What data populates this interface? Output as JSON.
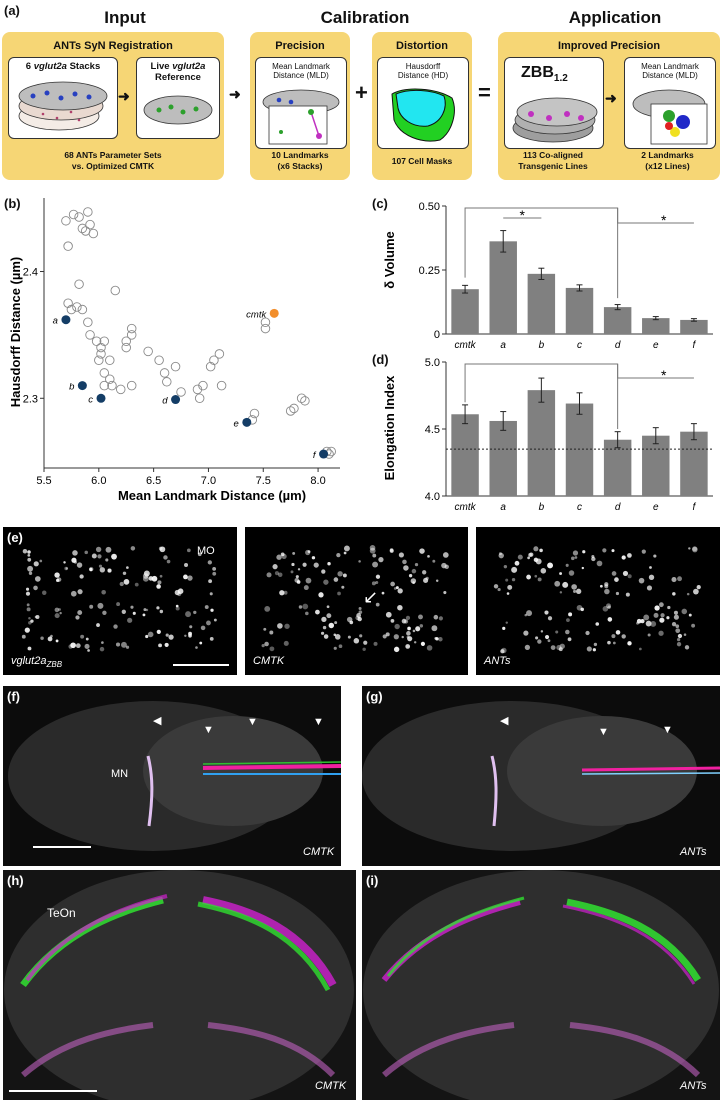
{
  "panels": {
    "a": "(a)",
    "b": "(b)",
    "c": "(c)",
    "d": "(d)",
    "e": "(e)",
    "f": "(f)",
    "g": "(g)",
    "h": "(h)",
    "i": "(i)"
  },
  "panel_a": {
    "input": {
      "heading": "Input",
      "box_title": "ANTs SyN Registration",
      "stacks_label_prefix": "6 ",
      "stacks_label_gene": "vglut2a",
      "stacks_label_suffix": " Stacks",
      "live_label_1": "Live ",
      "live_label_gene": "vglut2a",
      "live_label_2": "Reference",
      "caption_1": "68 ANTs Parameter Sets",
      "caption_2": "vs. Optimized CMTK"
    },
    "calibration": {
      "heading": "Calibration",
      "precision_title": "Precision",
      "distortion_title": "Distortion",
      "mld_label_1": "Mean Landmark",
      "mld_label_2": "Distance (MLD)",
      "hd_label_1": "Hausdorff",
      "hd_label_2": "Distance (HD)",
      "cap_prec_1": "10 Landmarks",
      "cap_prec_2": "(x6 Stacks)",
      "cap_dist": "107 Cell Masks"
    },
    "application": {
      "heading": "Application",
      "box_title": "Improved Precision",
      "zbb_main": "ZBB",
      "zbb_sub": "1.2",
      "mld_label_1": "Mean Landmark",
      "mld_label_2": "Distance (MLD)",
      "cap_1a": "113 Co-aligned",
      "cap_1b": "Transgenic Lines",
      "cap_2a": "2 Landmarks",
      "cap_2b": "(x12 Lines)"
    },
    "ops": {
      "plus": "+",
      "equals": "="
    },
    "colors": {
      "box": "#f6d675",
      "orange": "#f28e2b",
      "navy": "#143d66"
    }
  },
  "panel_e": {
    "mo": "MO",
    "lbl1_main": "vglut2a",
    "lbl1_sub": "ZBB",
    "lbl2": "CMTK",
    "lbl3": "ANTs"
  },
  "panel_fg": {
    "mn": "MN",
    "lbl_f": "CMTK",
    "lbl_g": "ANTs"
  },
  "panel_hi": {
    "teon": "TeOn",
    "lbl_h": "CMTK",
    "lbl_i": "ANTs"
  },
  "chart_data": [
    {
      "id": "b",
      "type": "scatter",
      "xlabel": "Mean Landmark Distance (µm)",
      "ylabel": "Hausdorff Distance  (µm)",
      "xlim": [
        5.5,
        8.2
      ],
      "ylim": [
        2.245,
        2.458
      ],
      "xticks": [
        5.5,
        6.0,
        6.5,
        7.0,
        7.5,
        8.0
      ],
      "xtick_labels": [
        "5.5",
        "6.0",
        "6.5",
        "7.0",
        "7.5",
        "8.0"
      ],
      "yticks": [
        2.3,
        2.4
      ],
      "ytick_labels": [
        "2.3",
        "2.4"
      ],
      "series": [
        {
          "name": "",
          "color": "none",
          "points": [
            [
              5.7,
              2.44
            ],
            [
              5.72,
              2.42
            ],
            [
              5.77,
              2.445
            ],
            [
              5.82,
              2.443
            ],
            [
              5.9,
              2.447
            ],
            [
              5.92,
              2.437
            ],
            [
              5.85,
              2.434
            ],
            [
              5.88,
              2.432
            ],
            [
              5.95,
              2.43
            ],
            [
              5.82,
              2.39
            ],
            [
              5.72,
              2.375
            ],
            [
              5.75,
              2.37
            ],
            [
              5.8,
              2.372
            ],
            [
              5.85,
              2.37
            ],
            [
              5.9,
              2.36
            ],
            [
              5.92,
              2.35
            ],
            [
              5.98,
              2.345
            ],
            [
              6.02,
              2.34
            ],
            [
              6.05,
              2.345
            ],
            [
              6.15,
              2.385
            ],
            [
              6.0,
              2.33
            ],
            [
              6.05,
              2.32
            ],
            [
              6.1,
              2.315
            ],
            [
              6.1,
              2.33
            ],
            [
              6.25,
              2.345
            ],
            [
              6.3,
              2.35
            ],
            [
              6.3,
              2.355
            ],
            [
              6.25,
              2.34
            ],
            [
              6.05,
              2.31
            ],
            [
              6.02,
              2.335
            ],
            [
              6.12,
              2.31
            ],
            [
              6.2,
              2.307
            ],
            [
              6.3,
              2.31
            ],
            [
              6.45,
              2.337
            ],
            [
              6.55,
              2.33
            ],
            [
              6.6,
              2.32
            ],
            [
              6.62,
              2.313
            ],
            [
              6.7,
              2.325
            ],
            [
              6.75,
              2.305
            ],
            [
              6.9,
              2.307
            ],
            [
              6.92,
              2.3
            ],
            [
              6.95,
              2.31
            ],
            [
              7.02,
              2.325
            ],
            [
              7.05,
              2.33
            ],
            [
              7.1,
              2.335
            ],
            [
              7.12,
              2.31
            ],
            [
              7.4,
              2.283
            ],
            [
              7.42,
              2.288
            ],
            [
              7.52,
              2.36
            ],
            [
              7.52,
              2.355
            ],
            [
              7.75,
              2.29
            ],
            [
              7.78,
              2.292
            ],
            [
              7.85,
              2.3
            ],
            [
              7.88,
              2.298
            ],
            [
              8.08,
              2.258
            ],
            [
              8.12,
              2.258
            ],
            [
              8.1,
              2.256
            ]
          ]
        },
        {
          "name": "",
          "color": "#143d66",
          "labeled": true,
          "points": [
            {
              "x": 5.7,
              "y": 2.362,
              "label": "a"
            },
            {
              "x": 5.85,
              "y": 2.31,
              "label": "b"
            },
            {
              "x": 6.02,
              "y": 2.3,
              "label": "c"
            },
            {
              "x": 6.7,
              "y": 2.299,
              "label": "d"
            },
            {
              "x": 7.35,
              "y": 2.281,
              "label": "e"
            },
            {
              "x": 8.05,
              "y": 2.256,
              "label": "f"
            }
          ]
        },
        {
          "name": "",
          "color": "#f28e2b",
          "labeled": true,
          "points": [
            {
              "x": 7.6,
              "y": 2.367,
              "label": "cmtk"
            }
          ]
        }
      ]
    },
    {
      "id": "c",
      "type": "bar",
      "ylabel": "δ Volume",
      "categories": [
        "cmtk",
        "a",
        "b",
        "c",
        "d",
        "e",
        "f"
      ],
      "values": [
        0.175,
        0.362,
        0.235,
        0.18,
        0.105,
        0.062,
        0.055
      ],
      "errors": [
        0.015,
        0.042,
        0.022,
        0.012,
        0.01,
        0.006,
        0.005
      ],
      "ylim": [
        0,
        0.5
      ],
      "yticks": [
        0,
        0.25,
        0.5
      ],
      "ytick_labels": [
        "0",
        "0.25",
        "0.50"
      ],
      "annotations": [
        "*",
        "*"
      ],
      "bar_color": "#808080"
    },
    {
      "id": "d",
      "type": "bar",
      "ylabel": "Elongation Index",
      "categories": [
        "cmtk",
        "a",
        "b",
        "c",
        "d",
        "e",
        "f"
      ],
      "values": [
        4.61,
        4.56,
        4.79,
        4.69,
        4.42,
        4.45,
        4.48
      ],
      "errors": [
        0.07,
        0.07,
        0.09,
        0.08,
        0.06,
        0.06,
        0.06
      ],
      "ylim": [
        4.0,
        5.0
      ],
      "yticks": [
        4.0,
        4.5,
        5.0
      ],
      "ytick_labels": [
        "4.0",
        "4.5",
        "5.0"
      ],
      "reference_line": 4.35,
      "annotations": [
        "*"
      ],
      "bar_color": "#808080"
    }
  ]
}
